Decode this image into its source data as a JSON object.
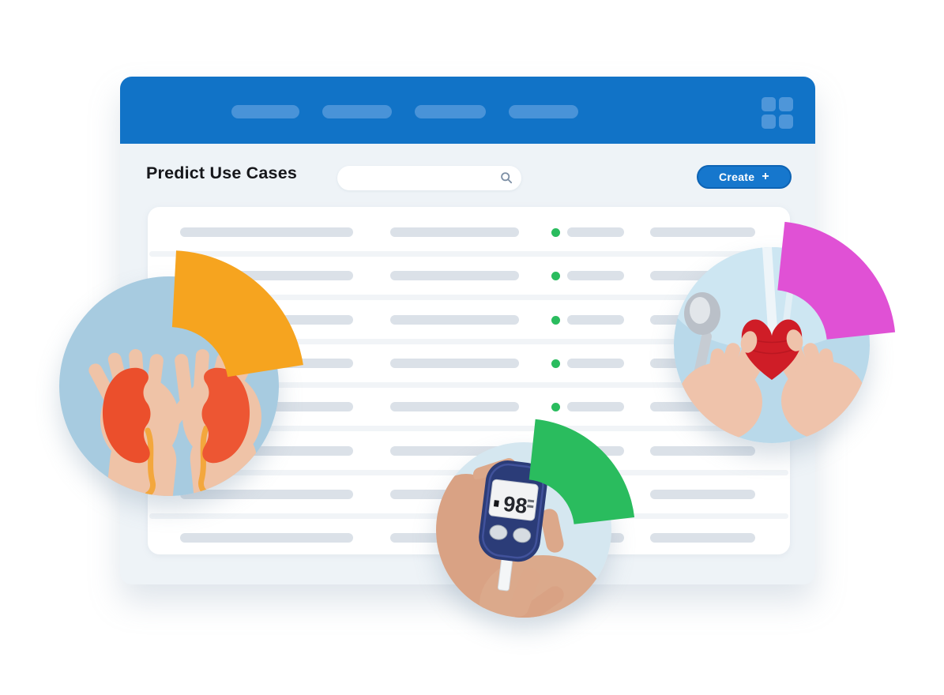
{
  "colors": {
    "toolbar_blue": "#1173c7",
    "toolbar_item_blue": "#4e96d9",
    "accent_blue": "#1677cd",
    "orange_wedge": "#f6a41f",
    "magenta_wedge": "#e051d5",
    "green_wedge": "#2abc5e",
    "status_green": "#2abc5e",
    "bar_gray": "#dbe1e8",
    "divider_gray": "#f1f4f7",
    "window_bg": "#eef3f7",
    "heart_red": "#cf1d27"
  },
  "window": {
    "toolbar": {
      "nav_placeholders": [
        {
          "label": ""
        },
        {
          "label": ""
        },
        {
          "label": ""
        },
        {
          "label": ""
        }
      ],
      "apps_icon": "apps-grid-icon"
    },
    "header": {
      "title": "Predict Use Cases",
      "search": {
        "value": "",
        "placeholder": "",
        "icon": "search-icon"
      },
      "create_button": {
        "label": "Create",
        "plus": "+"
      }
    },
    "table": {
      "columns": [
        "text-placeholder",
        "text-placeholder",
        "status-dot-with-placeholder",
        "text-placeholder"
      ],
      "rows": [
        {
          "status_dot": true
        },
        {
          "status_dot": true
        },
        {
          "status_dot": true
        },
        {
          "status_dot": true
        },
        {
          "status_dot": true
        },
        {
          "status_dot": true
        },
        {
          "status_dot": true
        },
        {
          "status_dot": true
        }
      ]
    }
  },
  "illustration": {
    "photos": [
      {
        "name": "hands-holding-paper-kidneys"
      },
      {
        "name": "hands-holding-crochet-heart"
      },
      {
        "name": "hand-holding-glucose-meter",
        "meter_reading": "98"
      }
    ],
    "wedges": [
      "orange",
      "magenta",
      "green"
    ]
  }
}
